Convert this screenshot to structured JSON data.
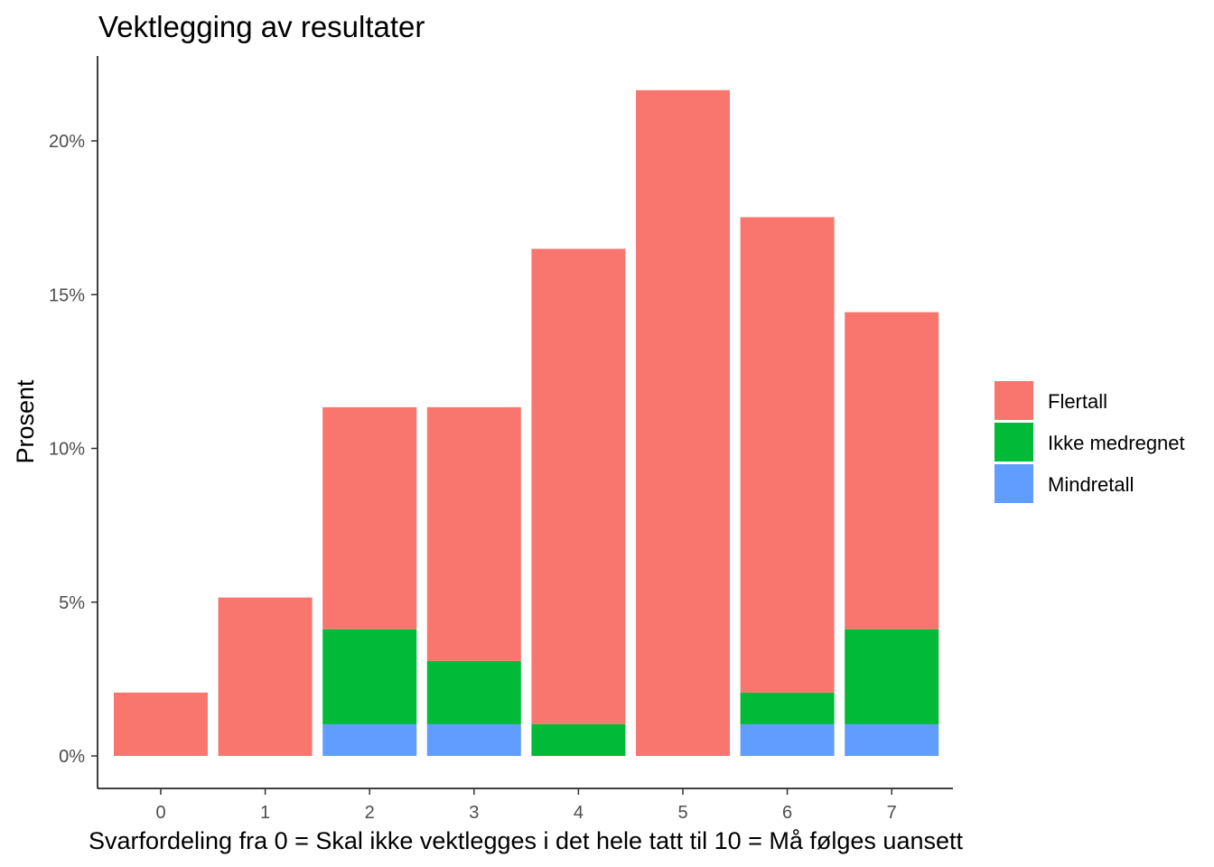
{
  "chart_data": {
    "type": "bar",
    "stacked": true,
    "title": "Vektlegging av resultater",
    "xlabel": "Svarfordeling fra 0 = Skal ikke vektlegges i det hele tatt til 10 = Må følges uansett",
    "ylabel": "Prosent",
    "categories": [
      "0",
      "1",
      "2",
      "3",
      "4",
      "5",
      "6",
      "7"
    ],
    "ylim": [
      0,
      22.5
    ],
    "yticks": [
      0,
      5,
      10,
      15,
      20
    ],
    "ytick_labels": [
      "0%",
      "5%",
      "10%",
      "15%",
      "20%"
    ],
    "legend_position": "right",
    "grid": false,
    "series": [
      {
        "name": "Mindretall",
        "color": "#619CFF",
        "values": [
          0,
          0,
          1.03,
          1.03,
          0,
          0,
          1.03,
          1.03
        ]
      },
      {
        "name": "Ikke medregnet",
        "color": "#00BA38",
        "values": [
          0,
          0,
          3.09,
          2.06,
          1.03,
          0,
          1.03,
          3.09
        ]
      },
      {
        "name": "Flertall",
        "color": "#F8766D",
        "values": [
          2.06,
          5.15,
          7.22,
          8.25,
          15.46,
          21.65,
          15.46,
          10.31
        ]
      }
    ],
    "legend_order": [
      "Flertall",
      "Ikke medregnet",
      "Mindretall"
    ]
  }
}
